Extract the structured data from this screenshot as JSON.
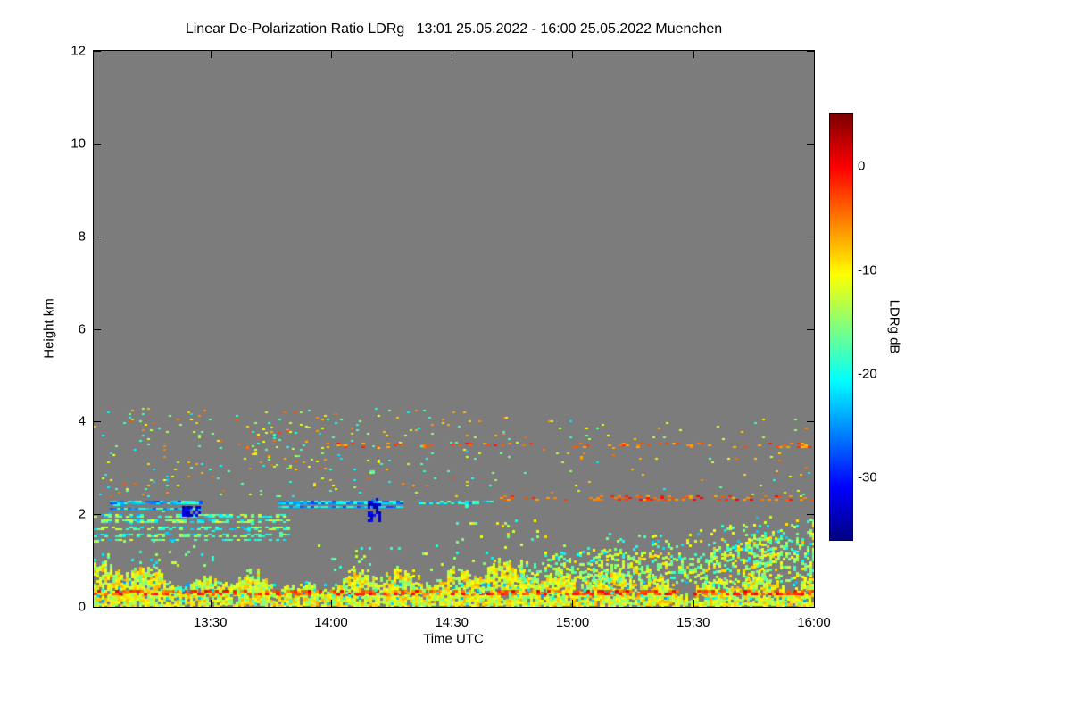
{
  "chart_data": {
    "type": "heatmap",
    "title": "Linear De-Polarization Ratio LDRg   13:01 25.05.2022 - 16:00 25.05.2022 Muenchen",
    "xlabel": "Time UTC",
    "ylabel": "Height km",
    "station": "Muenchen",
    "date": "25.05.2022",
    "time_start": "13:01",
    "time_end": "16:00",
    "x_range_minutes": [
      0,
      179
    ],
    "x_ticks": [
      "13:30",
      "14:00",
      "14:30",
      "15:00",
      "15:30",
      "16:00"
    ],
    "x_tick_minutes": [
      29,
      59,
      89,
      119,
      149,
      179
    ],
    "y_ticks": [
      0,
      2,
      4,
      6,
      8,
      10,
      12
    ],
    "ylim": [
      0,
      12
    ],
    "colorbar": {
      "label": "LDRg dB",
      "ticks": [
        0,
        -10,
        -20,
        -30
      ],
      "range": [
        -36,
        5
      ],
      "colormap": "jet",
      "background_no_data": "#7c7c7c"
    },
    "features": [
      {
        "name": "surface-band-core",
        "t": [
          0,
          179
        ],
        "h": [
          0.03,
          0.62
        ],
        "undulate": 0.4,
        "density": 0.85,
        "values": [
          -16,
          -7
        ],
        "cell": [
          3,
          3
        ]
      },
      {
        "name": "surface-orange-line",
        "t": [
          0,
          179
        ],
        "h": [
          0.26,
          0.36
        ],
        "density": 0.5,
        "values": [
          -6,
          1
        ],
        "cell": [
          4,
          3
        ]
      },
      {
        "name": "surface-cyan-specks",
        "t": [
          0,
          179
        ],
        "h": [
          0.08,
          0.55
        ],
        "density": 0.05,
        "values": [
          -25,
          -18
        ],
        "cell": [
          3,
          3
        ]
      },
      {
        "name": "bl-growth-dense",
        "t": [
          106,
          179
        ],
        "h": [
          0.55,
          1.0
        ],
        "ramp": [
          0.9,
          1.6
        ],
        "undulate": 0.25,
        "density": 0.4,
        "values": [
          -19,
          -8
        ],
        "cell": [
          3,
          3
        ]
      },
      {
        "name": "bl-growth-sparse",
        "t": [
          112,
          179
        ],
        "h": [
          1.0,
          1.4
        ],
        "ramp": [
          1.3,
          2.05
        ],
        "undulate": 0.2,
        "density": 0.14,
        "values": [
          -23,
          -9
        ],
        "cell": [
          3,
          3
        ]
      },
      {
        "name": "cyan-streaks-a",
        "t": [
          4,
          27
        ],
        "h": [
          2.12,
          2.3
        ],
        "density": 0.55,
        "values": [
          -28,
          -17
        ],
        "cell": [
          4,
          2
        ],
        "streaky": true
      },
      {
        "name": "cyan-streaks-b",
        "t": [
          46,
          77
        ],
        "h": [
          2.15,
          2.33
        ],
        "density": 0.6,
        "values": [
          -28,
          -18
        ],
        "cell": [
          4,
          2
        ],
        "streaky": true
      },
      {
        "name": "cyan-streaks-c",
        "t": [
          79,
          99
        ],
        "h": [
          2.18,
          2.3
        ],
        "density": 0.4,
        "values": [
          -26,
          -16
        ],
        "cell": [
          4,
          2
        ],
        "streaky": true
      },
      {
        "name": "low-streaks",
        "t": [
          0,
          48
        ],
        "h": [
          1.45,
          2.08
        ],
        "density": 0.3,
        "values": [
          -24,
          -11
        ],
        "cell": [
          4,
          2
        ],
        "streaky": true
      },
      {
        "name": "navy-patch-1",
        "t": [
          22,
          26
        ],
        "h": [
          1.95,
          2.18
        ],
        "density": 0.75,
        "values": [
          -36,
          -30
        ],
        "cell": [
          3,
          3
        ]
      },
      {
        "name": "navy-patch-2",
        "t": [
          68,
          71
        ],
        "h": [
          1.85,
          2.35
        ],
        "density": 0.6,
        "values": [
          -36,
          -30
        ],
        "cell": [
          3,
          3
        ]
      },
      {
        "name": "orange-dotted-line-2km35",
        "t": [
          100,
          179
        ],
        "h": [
          2.3,
          2.4
        ],
        "density": 0.28,
        "values": [
          -7,
          0
        ],
        "cell": [
          4,
          2
        ]
      },
      {
        "name": "red-dotted-line-3km5",
        "t": [
          55,
          179
        ],
        "h": [
          3.44,
          3.54
        ],
        "density": 0.16,
        "values": [
          -8,
          -1
        ],
        "cell": [
          4,
          2
        ]
      },
      {
        "name": "mid-speckle-early",
        "t": [
          0,
          95
        ],
        "h": [
          2.4,
          4.3
        ],
        "density": 0.03,
        "values": [
          -22,
          -3
        ],
        "cell": [
          3,
          2
        ]
      },
      {
        "name": "mid-speckle-late",
        "t": [
          95,
          179
        ],
        "h": [
          2.4,
          4.1
        ],
        "density": 0.012,
        "values": [
          -22,
          -4
        ],
        "cell": [
          3,
          2
        ]
      },
      {
        "name": "speckle-cluster-1345",
        "t": [
          38,
          58
        ],
        "h": [
          3.0,
          3.9
        ],
        "density": 0.06,
        "values": [
          -20,
          -2
        ],
        "cell": [
          3,
          2
        ]
      },
      {
        "name": "sparse-13h",
        "t": [
          0,
          30
        ],
        "h": [
          0.9,
          1.5
        ],
        "density": 0.05,
        "values": [
          -22,
          -12
        ],
        "cell": [
          3,
          3
        ]
      },
      {
        "name": "sparse-14h",
        "t": [
          55,
          88
        ],
        "h": [
          0.8,
          1.4
        ],
        "density": 0.045,
        "values": [
          -20,
          -10
        ],
        "cell": [
          3,
          3
        ]
      },
      {
        "name": "sparse-14h40",
        "t": [
          88,
          112
        ],
        "h": [
          0.9,
          2.0
        ],
        "density": 0.04,
        "values": [
          -22,
          -8
        ],
        "cell": [
          3,
          3
        ]
      }
    ]
  }
}
